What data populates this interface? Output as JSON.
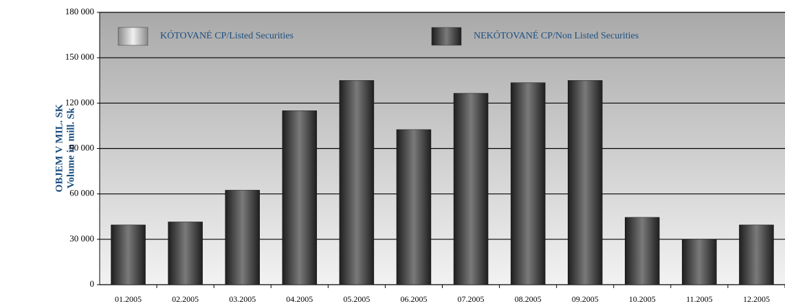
{
  "chart_data": {
    "type": "stacked_bar",
    "y_label": [
      "OBJEM V MIL. SK",
      "Volume in mill. Sk"
    ],
    "categories": [
      "01.2005",
      "02.2005",
      "03.2005",
      "04.2005",
      "05.2005",
      "06.2005",
      "07.2005",
      "08.2005",
      "09.2005",
      "10.2005",
      "11.2005",
      "12.2005"
    ],
    "series": [
      {
        "name": "KÓTOVANÉ CP/Listed Securities",
        "color": "#bdbdbd",
        "values": [
          0,
          0,
          0,
          0,
          0,
          0,
          0,
          0,
          0,
          0,
          0,
          0
        ]
      },
      {
        "name": "NEKÓTOVANÉ CP/Non Listed Securities",
        "color": "#3a3a3a",
        "values": [
          39500,
          41500,
          62500,
          115000,
          135000,
          102500,
          126500,
          133500,
          135000,
          44500,
          30000,
          39500
        ]
      }
    ],
    "ylim": [
      0,
      180000
    ],
    "yticks": [
      0,
      {
        "value": 30000,
        "label": "30 000"
      },
      {
        "value": 60000,
        "label": "60 000"
      },
      {
        "value": 90000,
        "label": "90 000"
      },
      {
        "value": 120000,
        "label": "120 000"
      },
      {
        "value": 150000,
        "label": "150 000"
      },
      {
        "value": 180000,
        "label": "180 000"
      }
    ],
    "grid": true
  }
}
